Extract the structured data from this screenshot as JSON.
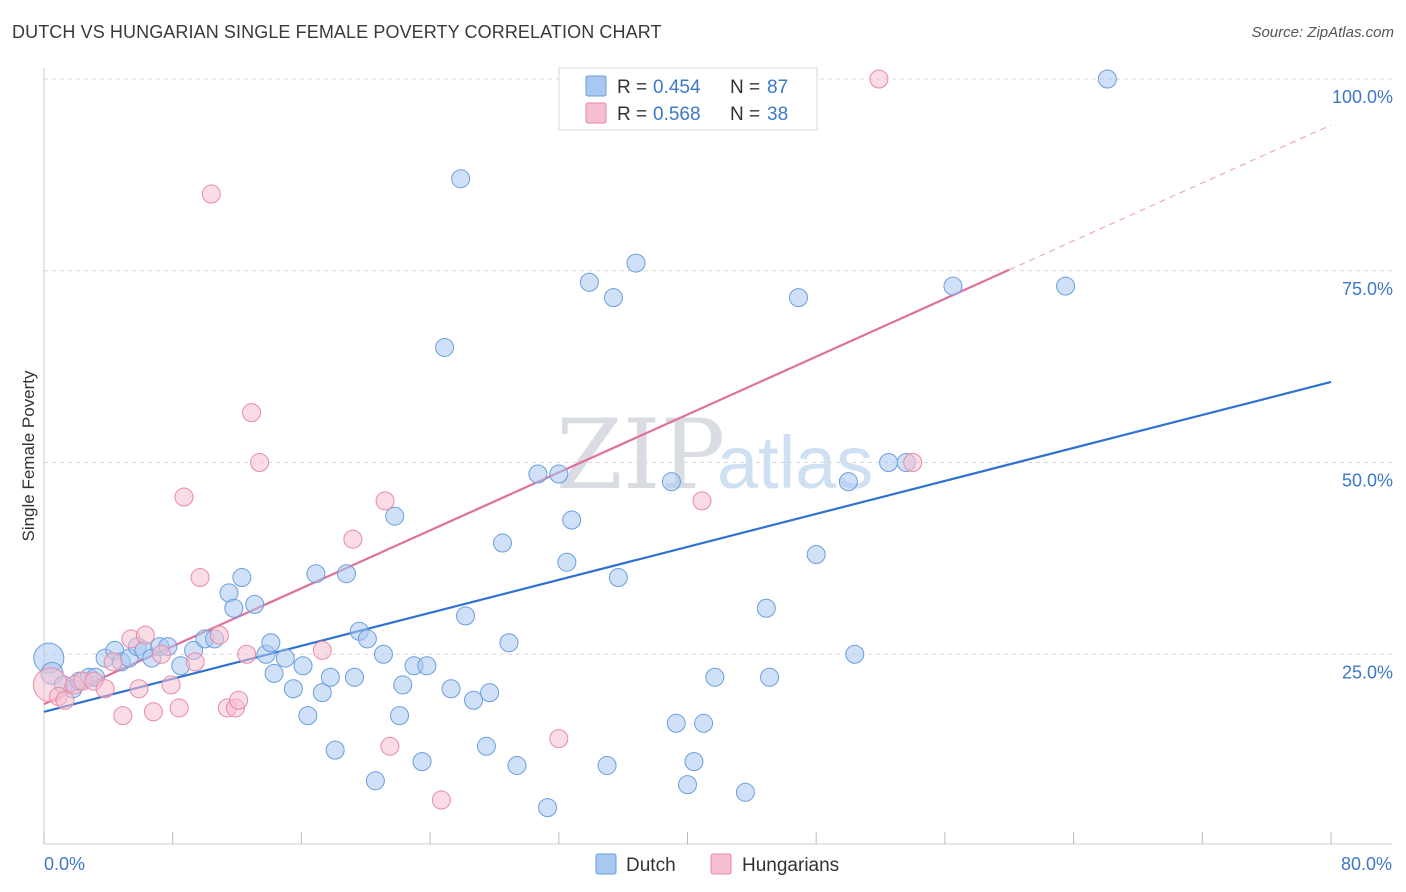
{
  "header": {
    "title": "DUTCH VS HUNGARIAN SINGLE FEMALE POVERTY CORRELATION CHART",
    "source": "Source: ZipAtlas.com"
  },
  "watermark": {
    "zip": "ZIP",
    "atlas": "atlas"
  },
  "legend": {
    "dutch": {
      "r_label": "R =",
      "r_value": "0.454",
      "n_label": "N =",
      "n_value": "87"
    },
    "hungarians": {
      "r_label": "R =",
      "r_value": "0.568",
      "n_label": "N =",
      "n_value": "38"
    }
  },
  "bottom_legend": {
    "dutch": "Dutch",
    "hungarians": "Hungarians"
  },
  "colors": {
    "dutch_fill": "#a9c8f0",
    "dutch_stroke": "#6a9ede",
    "dutch_line": "#2f72d0",
    "hun_fill": "#f6bfd0",
    "hun_stroke": "#e88aa8",
    "hun_line": "#e0709a",
    "tick": "#3d78c8",
    "grid": "#d8d8d8"
  },
  "chart_data": {
    "type": "scatter",
    "title": "DUTCH VS HUNGARIAN SINGLE FEMALE POVERTY CORRELATION CHART",
    "xlabel": "",
    "ylabel": "Single Female Poverty",
    "xlim": [
      0,
      80
    ],
    "ylim": [
      0,
      100
    ],
    "x_tick_labels": [
      "0.0%",
      "80.0%"
    ],
    "y_ticks": [
      25,
      50,
      75,
      100
    ],
    "y_tick_labels": [
      "25.0%",
      "50.0%",
      "75.0%",
      "100.0%"
    ],
    "grid": "horizontal dashed",
    "legend_position": "top-center",
    "series": [
      {
        "name": "Dutch",
        "r": 0.454,
        "n": 87,
        "trend": {
          "x": [
            0,
            80
          ],
          "y": [
            17.5,
            60.5
          ],
          "dashed_after": null
        },
        "points": [
          [
            0.3,
            24.5,
            14
          ],
          [
            0.5,
            22.5,
            10
          ],
          [
            1.2,
            21.0,
            8
          ],
          [
            1.8,
            20.5,
            8
          ],
          [
            2.2,
            21.5,
            8
          ],
          [
            2.8,
            22.0,
            8
          ],
          [
            3.2,
            22.0,
            8
          ],
          [
            3.8,
            24.5,
            8
          ],
          [
            4.4,
            25.5,
            8
          ],
          [
            4.8,
            24.0,
            8
          ],
          [
            5.3,
            24.5,
            8
          ],
          [
            5.8,
            26.0,
            8
          ],
          [
            6.2,
            25.5,
            8
          ],
          [
            6.7,
            24.5,
            8
          ],
          [
            7.2,
            26.0,
            8
          ],
          [
            7.7,
            26.0,
            8
          ],
          [
            8.5,
            23.5,
            8
          ],
          [
            9.3,
            25.5,
            8
          ],
          [
            10.0,
            27.0,
            8
          ],
          [
            10.6,
            27.0,
            8
          ],
          [
            11.5,
            33.0,
            8
          ],
          [
            11.8,
            31.0,
            8
          ],
          [
            12.3,
            35.0,
            8
          ],
          [
            13.1,
            31.5,
            8
          ],
          [
            13.8,
            25.0,
            8
          ],
          [
            14.1,
            26.5,
            8
          ],
          [
            14.3,
            22.5,
            8
          ],
          [
            15.0,
            24.5,
            8
          ],
          [
            15.5,
            20.5,
            8
          ],
          [
            16.1,
            23.5,
            8
          ],
          [
            16.4,
            17.0,
            8
          ],
          [
            16.9,
            35.5,
            8
          ],
          [
            17.3,
            20.0,
            8
          ],
          [
            17.8,
            22.0,
            8
          ],
          [
            18.1,
            12.5,
            8
          ],
          [
            18.8,
            35.5,
            8
          ],
          [
            19.3,
            22.0,
            8
          ],
          [
            19.6,
            28.0,
            8
          ],
          [
            20.1,
            27.0,
            8
          ],
          [
            20.6,
            8.5,
            8
          ],
          [
            21.1,
            25.0,
            8
          ],
          [
            21.8,
            43.0,
            8
          ],
          [
            22.1,
            17.0,
            8
          ],
          [
            22.3,
            21.0,
            8
          ],
          [
            23.0,
            23.5,
            8
          ],
          [
            23.5,
            11.0,
            8
          ],
          [
            23.8,
            23.5,
            8
          ],
          [
            24.9,
            65.0,
            8
          ],
          [
            25.3,
            20.5,
            8
          ],
          [
            25.9,
            87.0,
            8
          ],
          [
            26.2,
            30.0,
            8
          ],
          [
            26.7,
            19.0,
            8
          ],
          [
            27.5,
            13.0,
            8
          ],
          [
            27.7,
            20.0,
            8
          ],
          [
            28.5,
            39.5,
            8
          ],
          [
            28.9,
            26.5,
            8
          ],
          [
            29.4,
            10.5,
            8
          ],
          [
            30.7,
            48.5,
            8
          ],
          [
            31.3,
            5.0,
            8
          ],
          [
            32.0,
            48.5,
            8
          ],
          [
            32.5,
            37.0,
            8
          ],
          [
            32.8,
            42.5,
            8
          ],
          [
            33.9,
            73.5,
            8
          ],
          [
            35.0,
            10.5,
            8
          ],
          [
            35.4,
            71.5,
            8
          ],
          [
            35.7,
            35.0,
            8
          ],
          [
            36.8,
            76.0,
            8
          ],
          [
            39.0,
            47.5,
            8
          ],
          [
            39.3,
            16.0,
            8
          ],
          [
            40.0,
            8.0,
            8
          ],
          [
            40.4,
            11.0,
            8
          ],
          [
            41.0,
            16.0,
            8
          ],
          [
            41.7,
            22.0,
            8
          ],
          [
            43.6,
            7.0,
            8
          ],
          [
            44.9,
            31.0,
            8
          ],
          [
            45.1,
            22.0,
            8
          ],
          [
            46.9,
            71.5,
            8
          ],
          [
            48.0,
            38.0,
            8
          ],
          [
            50.0,
            47.5,
            8
          ],
          [
            50.4,
            25.0,
            8
          ],
          [
            52.5,
            50.0,
            8
          ],
          [
            53.6,
            50.0,
            8
          ],
          [
            56.5,
            73.0,
            8
          ],
          [
            63.5,
            73.0,
            8
          ],
          [
            66.1,
            100.0,
            8
          ]
        ]
      },
      {
        "name": "Hungarians",
        "r": 0.568,
        "n": 38,
        "trend": {
          "x": [
            0,
            80
          ],
          "y": [
            18.5,
            94
          ],
          "solid_until_x": 60
        },
        "points": [
          [
            0.4,
            21.0,
            16
          ],
          [
            0.9,
            19.5,
            8
          ],
          [
            1.3,
            19.0,
            8
          ],
          [
            1.9,
            21.0,
            8
          ],
          [
            2.4,
            21.5,
            8
          ],
          [
            3.1,
            21.5,
            8
          ],
          [
            3.8,
            20.5,
            8
          ],
          [
            4.3,
            24.0,
            8
          ],
          [
            4.9,
            17.0,
            8
          ],
          [
            5.4,
            27.0,
            8
          ],
          [
            5.9,
            20.5,
            8
          ],
          [
            6.3,
            27.5,
            8
          ],
          [
            6.8,
            17.5,
            8
          ],
          [
            7.3,
            25.0,
            8
          ],
          [
            7.9,
            21.0,
            8
          ],
          [
            8.4,
            18.0,
            8
          ],
          [
            8.7,
            45.5,
            8
          ],
          [
            9.4,
            24.0,
            8
          ],
          [
            9.7,
            35.0,
            8
          ],
          [
            10.4,
            85.0,
            8
          ],
          [
            10.9,
            27.5,
            8
          ],
          [
            11.4,
            18.0,
            8
          ],
          [
            11.9,
            18.0,
            8
          ],
          [
            12.1,
            19.0,
            8
          ],
          [
            12.6,
            25.0,
            8
          ],
          [
            12.9,
            56.5,
            8
          ],
          [
            13.4,
            50.0,
            8
          ],
          [
            17.3,
            25.5,
            8
          ],
          [
            19.2,
            40.0,
            8
          ],
          [
            21.2,
            45.0,
            8
          ],
          [
            21.5,
            13.0,
            8
          ],
          [
            24.7,
            6.0,
            8
          ],
          [
            32.0,
            14.0,
            8
          ],
          [
            40.9,
            45.0,
            8
          ],
          [
            51.9,
            100.0,
            8
          ],
          [
            54.0,
            50.0,
            8
          ]
        ]
      }
    ]
  }
}
